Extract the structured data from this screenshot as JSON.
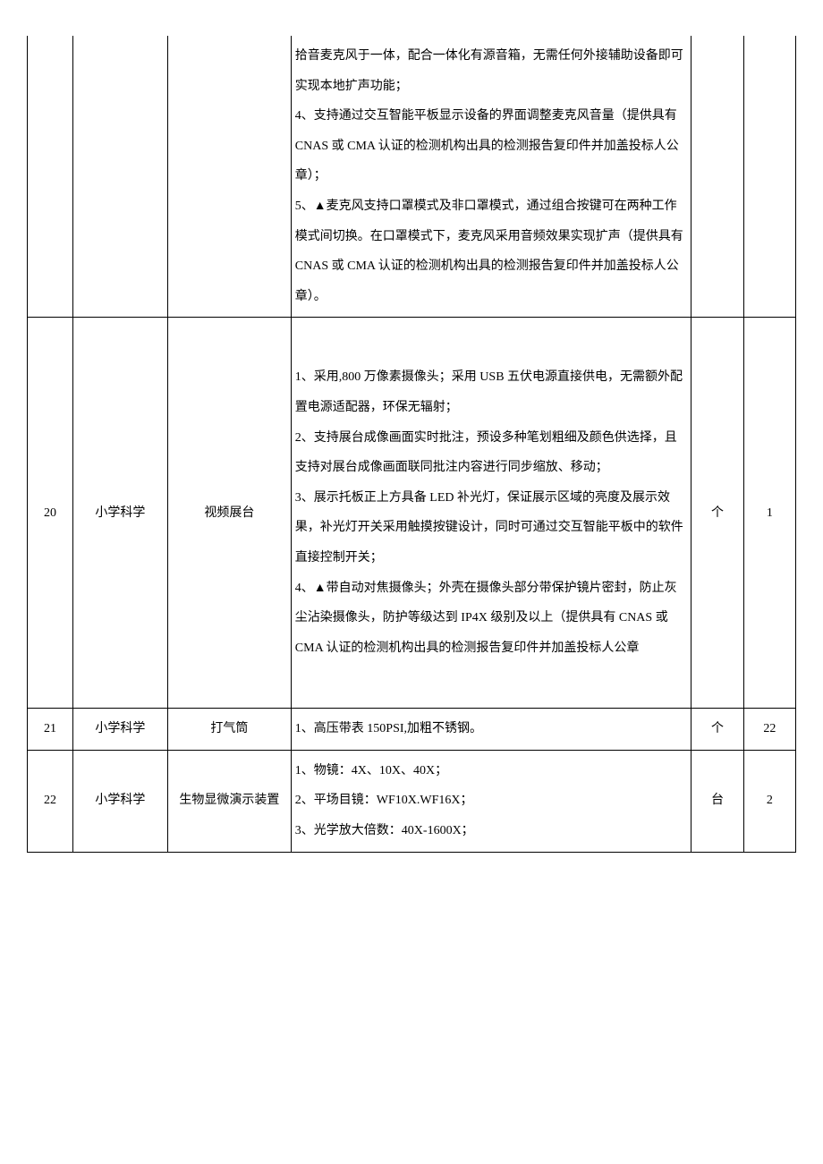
{
  "rows": [
    {
      "num": "",
      "category": "",
      "name": "",
      "spec": "拾音麦克风于一体，配合一体化有源音箱，无需任何外接辅助设备即可实现本地扩声功能；\n4、支持通过交互智能平板显示设备的界面调整麦克风音量（提供具有 CNAS 或 CMA 认证的检测机构出具的检测报告复印件并加盖投标人公章）；\n5、▲麦克风支持口罩模式及非口罩模式，通过组合按键可在两种工作模式间切换。在口罩模式下，麦克风采用音频效果实现扩声（提供具有 CNAS 或 CMA 认证的检测机构出具的检测报告复印件并加盖投标人公章）。",
      "unit": "",
      "qty": "",
      "partial": true
    },
    {
      "num": "20",
      "category": "小学科学",
      "name": "视频展台",
      "spec": "1、采用,800 万像素摄像头；采用 USB 五伏电源直接供电，无需额外配置电源适配器，环保无辐射；\n2、支持展台成像画面实时批注，预设多种笔划粗细及颜色供选择，且支持对展台成像画面联同批注内容进行同步缩放、移动；\n3、展示托板正上方具备 LED 补光灯，保证展示区域的亮度及展示效果，补光灯开关采用触摸按键设计，同时可通过交互智能平板中的软件直接控制开关；\n4、▲带自动对焦摄像头；外壳在摄像头部分带保护镜片密封，防止灰尘沾染摄像头，防护等级达到 IP4X 级别及以上（提供具有 CNAS 或 CMA 认证的检测机构出具的检测报告复印件并加盖投标人公章",
      "unit": "个",
      "qty": "1",
      "tall": true
    },
    {
      "num": "21",
      "category": "小学科学",
      "name": "打气筒",
      "spec": "1、高压带表 150PSI,加粗不锈钢。",
      "unit": "个",
      "qty": "22"
    },
    {
      "num": "22",
      "category": "小学科学",
      "name": "生物显微演示装置",
      "spec": "1、物镜：4X、10X、40X；\n2、平场目镜：WF10X.WF16X；\n3、光学放大倍数：40X-1600X；",
      "unit": "台",
      "qty": "2"
    }
  ],
  "styling": {
    "border_color": "#000000",
    "text_color": "#000000",
    "background_color": "#ffffff",
    "font_family": "SimSun",
    "font_size": 14,
    "line_height": 2.4,
    "column_widths": {
      "num": 48,
      "category": 100,
      "name": 130,
      "spec": 422,
      "unit": 55,
      "qty": 55
    }
  }
}
